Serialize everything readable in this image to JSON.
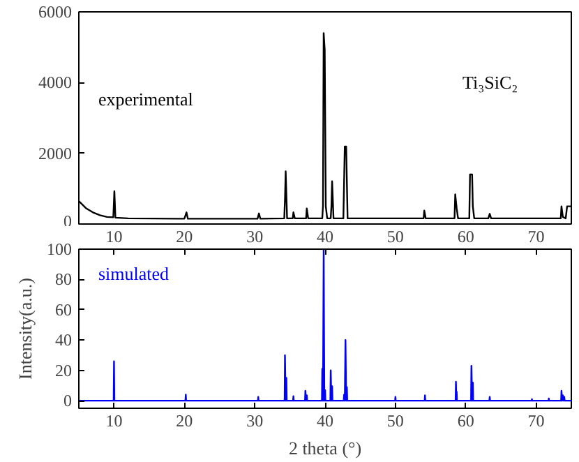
{
  "chart_data": [
    {
      "type": "line",
      "ylim": [
        0,
        6000
      ],
      "yticks": [
        0,
        2000,
        4000,
        6000
      ],
      "xlim": [
        5,
        75
      ],
      "xticks": [
        10,
        20,
        30,
        40,
        50,
        60,
        70
      ],
      "tick_labels": "y",
      "grid": false,
      "annotations": [
        "experimental",
        "Ti₃SiC₂"
      ],
      "series": [
        {
          "color": "#000000",
          "x": [
            5,
            6,
            7,
            8,
            9,
            9.9,
            10.05,
            10.2,
            12,
            20,
            20.3,
            20.5,
            30.4,
            30.6,
            30.8,
            34.2,
            34.3,
            34.4,
            34.6,
            35.4,
            35.5,
            35.7,
            37.3,
            37.4,
            37.6,
            39.6,
            39.7,
            39.8,
            39.95,
            40.1,
            40.3,
            40.8,
            40.9,
            41.0,
            41.2,
            42.6,
            42.8,
            43.0,
            43.2,
            54.0,
            54.1,
            54.3,
            58.4,
            58.5,
            58.7,
            58.9,
            60.5,
            60.6,
            60.9,
            61.0,
            61.2,
            63.2,
            63.4,
            63.6,
            73.5,
            73.6,
            73.8,
            74.2,
            74.4,
            75
          ],
          "values": [
            650,
            450,
            330,
            250,
            200,
            190,
            930,
            180,
            160,
            150,
            330,
            150,
            150,
            300,
            150,
            160,
            700,
            1490,
            160,
            160,
            330,
            160,
            160,
            440,
            160,
            160,
            500,
            5400,
            4930,
            500,
            160,
            160,
            500,
            1210,
            160,
            160,
            2190,
            2190,
            160,
            160,
            380,
            160,
            160,
            840,
            450,
            160,
            160,
            1400,
            1400,
            500,
            160,
            160,
            290,
            160,
            160,
            500,
            200,
            160,
            500,
            500
          ]
        }
      ]
    },
    {
      "type": "line",
      "ylim": [
        -5,
        100
      ],
      "yticks": [
        0,
        20,
        40,
        60,
        80,
        100
      ],
      "xlim": [
        5,
        75
      ],
      "xticks": [
        10,
        20,
        30,
        40,
        50,
        60,
        70
      ],
      "x2lim": [
        5,
        75
      ],
      "x2ticks": [
        10,
        20,
        30,
        40,
        50,
        60,
        70
      ],
      "grid": false,
      "xlabel": "2 theta (°)",
      "ylabel": "Intensity(a.u.)",
      "annotations": [
        "simulated"
      ],
      "series": [
        {
          "color": "#0000ff",
          "x": [
            5,
            9.95,
            10,
            10.05,
            20.15,
            20.2,
            20.25,
            30.45,
            30.5,
            30.55,
            34.25,
            34.3,
            34.4,
            34.5,
            34.55,
            35.45,
            35.5,
            35.55,
            37.15,
            37.2,
            37.3,
            37.4,
            37.45,
            39.55,
            39.6,
            39.7,
            39.8,
            39.9,
            40,
            40.05,
            40.75,
            40.8,
            40.9,
            41,
            41.05,
            42.65,
            42.7,
            42.8,
            42.9,
            43,
            43.1,
            43.15,
            49.95,
            50,
            50.05,
            54.15,
            54.2,
            54.25,
            58.55,
            58.6,
            58.65,
            58.7,
            58.75,
            60.75,
            60.8,
            60.9,
            61,
            61.05,
            63.35,
            63.4,
            63.45,
            69.35,
            69.4,
            69.45,
            71.75,
            71.8,
            71.85,
            73.55,
            73.6,
            73.7,
            73.8,
            73.9,
            74,
            74.05,
            75
          ],
          "values": [
            0,
            0,
            26,
            0,
            0,
            4,
            0,
            0,
            2.5,
            0,
            0,
            30,
            0,
            15,
            0,
            0,
            3,
            0,
            0,
            6.5,
            0,
            3.5,
            0,
            0,
            21,
            0,
            100,
            0,
            7,
            0,
            0,
            20,
            0,
            9.5,
            0,
            0,
            4,
            0,
            40,
            0,
            9,
            0,
            0,
            2.5,
            0,
            0,
            3.5,
            0,
            0,
            12.5,
            0,
            6,
            0,
            0,
            23,
            0,
            12,
            0,
            0,
            2.5,
            0,
            0,
            1,
            0,
            0,
            1.5,
            0,
            0,
            6.5,
            0,
            3.5,
            0,
            2.5,
            0,
            0
          ]
        }
      ]
    }
  ]
}
